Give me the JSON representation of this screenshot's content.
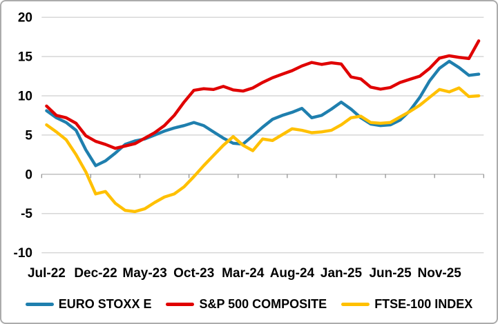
{
  "chart_data": {
    "type": "line",
    "title": "",
    "xlabel": "",
    "ylabel": "",
    "ylim": [
      -10,
      20
    ],
    "y_ticks": [
      20,
      15,
      10,
      5,
      0,
      -5,
      -10
    ],
    "x_tick_labels": [
      "Jul-22",
      "Dec-22",
      "May-23",
      "Oct-23",
      "Mar-24",
      "Aug-24",
      "Jan-25",
      "Jun-25",
      "Nov-25"
    ],
    "x_tick_interval_months": 5,
    "grid": true,
    "legend_position": "bottom",
    "months": [
      "Jul-22",
      "Aug-22",
      "Sep-22",
      "Oct-22",
      "Nov-22",
      "Dec-22",
      "Jan-23",
      "Feb-23",
      "Mar-23",
      "Apr-23",
      "May-23",
      "Jun-23",
      "Jul-23",
      "Aug-23",
      "Sep-23",
      "Oct-23",
      "Nov-23",
      "Dec-23",
      "Jan-24",
      "Feb-24",
      "Mar-24",
      "Apr-24",
      "May-24",
      "Jun-24",
      "Jul-24",
      "Aug-24",
      "Sep-24",
      "Oct-24",
      "Nov-24",
      "Dec-24",
      "Jan-25",
      "Feb-25",
      "Mar-25",
      "Apr-25",
      "May-25",
      "Jun-25",
      "Jul-25",
      "Aug-25",
      "Sep-25",
      "Oct-25",
      "Nov-25",
      "Dec-25",
      "Jan-26",
      "Feb-26",
      "Mar-26"
    ],
    "series": [
      {
        "name": "EURO STOXX E",
        "slug": "euro-stoxx-e",
        "color": "#1F7FAE",
        "values": [
          8.1,
          7.2,
          6.6,
          5.6,
          3.1,
          1.1,
          1.7,
          2.7,
          3.8,
          4.25,
          4.5,
          5.0,
          5.5,
          5.9,
          6.2,
          6.6,
          6.2,
          5.4,
          4.6,
          3.95,
          3.85,
          4.9,
          6.0,
          7.0,
          7.5,
          7.9,
          8.4,
          7.2,
          7.5,
          8.3,
          9.2,
          8.3,
          7.2,
          6.4,
          6.2,
          6.3,
          6.9,
          8.1,
          9.8,
          11.9,
          13.5,
          14.4,
          13.6,
          12.6,
          12.75
        ]
      },
      {
        "name": "S&P 500 COMPOSITE",
        "slug": "sp-500-composite",
        "color": "#E00000",
        "values": [
          8.7,
          7.5,
          7.2,
          6.5,
          4.9,
          4.2,
          3.8,
          3.3,
          3.6,
          3.9,
          4.6,
          5.3,
          6.2,
          7.5,
          9.2,
          10.7,
          10.9,
          10.8,
          11.2,
          10.75,
          10.6,
          11.0,
          11.7,
          12.3,
          12.75,
          13.2,
          13.8,
          14.25,
          14.0,
          14.2,
          14.05,
          12.4,
          12.15,
          11.1,
          10.85,
          11.05,
          11.7,
          12.1,
          12.5,
          13.5,
          14.8,
          15.1,
          14.9,
          14.75,
          17.0
        ]
      },
      {
        "name": "FTSE-100 INDEX",
        "slug": "ftse-100-index",
        "color": "#FFC000",
        "values": [
          6.3,
          5.4,
          4.4,
          2.5,
          0.3,
          -2.5,
          -2.2,
          -3.7,
          -4.6,
          -4.75,
          -4.4,
          -3.6,
          -2.9,
          -2.5,
          -1.6,
          -0.3,
          1.1,
          2.4,
          3.7,
          4.8,
          3.7,
          3.0,
          4.5,
          4.3,
          5.05,
          5.8,
          5.6,
          5.3,
          5.4,
          5.6,
          6.3,
          7.2,
          7.4,
          6.6,
          6.5,
          6.6,
          7.3,
          8.0,
          8.8,
          9.8,
          10.8,
          10.5,
          11.0,
          9.9,
          10.0
        ]
      }
    ]
  },
  "style": {
    "background": "#FFFFFF",
    "border_color": "#ABABAB",
    "grid_color": "#D6D6D6",
    "zero_axis_color": "#BFBFBF",
    "tick_color": "#8C8C8C",
    "text_color": "#000000"
  }
}
